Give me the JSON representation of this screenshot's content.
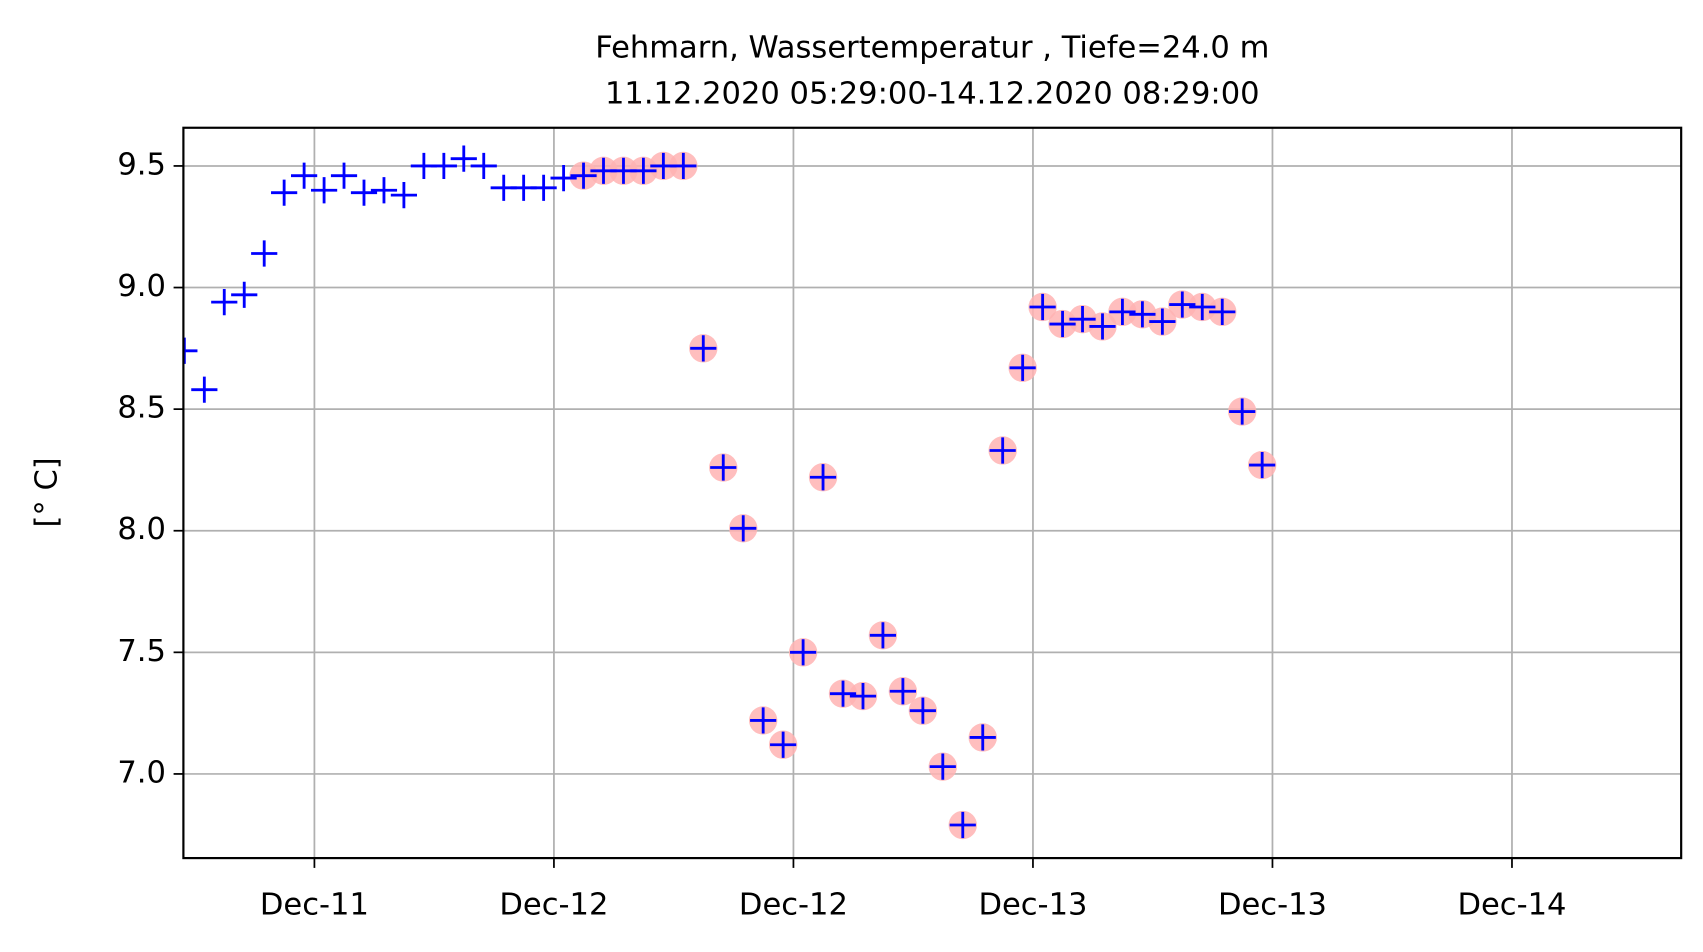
{
  "chart_data": {
    "type": "scatter",
    "title": "Fehmarn, Wassertemperatur , Tiefe=24.0 m",
    "subtitle": "11.12.2020 05:29:00-14.12.2020 08:29:00",
    "y_label": "[° C]",
    "x": [
      11.2285,
      11.2702,
      11.3118,
      11.3535,
      11.3952,
      11.4368,
      11.4785,
      11.5202,
      11.5618,
      11.6035,
      11.6452,
      11.6868,
      11.7285,
      11.7702,
      11.8118,
      11.8535,
      11.8952,
      11.9368,
      11.9785,
      12.0202,
      12.0618,
      12.1035,
      12.1452,
      12.1868,
      12.2285,
      12.2702,
      12.3118,
      12.3535,
      12.3952,
      12.4368,
      12.4785,
      12.5202,
      12.5618,
      12.6035,
      12.6452,
      12.6868,
      12.7285,
      12.7702,
      12.8118,
      12.8535,
      12.8952,
      12.9368,
      12.9785,
      13.0202,
      13.0618,
      13.1035,
      13.1452,
      13.1868,
      13.2285,
      13.2702,
      13.3118,
      13.3535,
      13.3952,
      13.4368,
      13.4785
    ],
    "series": [
      {
        "color": "#ffb3b3",
        "marker": "circle",
        "values": [
          null,
          null,
          null,
          null,
          null,
          null,
          null,
          null,
          null,
          null,
          null,
          null,
          null,
          null,
          null,
          null,
          null,
          null,
          null,
          null,
          9.46,
          9.48,
          9.48,
          9.48,
          9.5,
          9.5,
          8.75,
          8.26,
          8.01,
          7.22,
          7.12,
          7.5,
          8.22,
          7.33,
          7.32,
          7.57,
          7.34,
          7.26,
          7.03,
          6.79,
          7.15,
          8.33,
          8.67,
          8.92,
          8.85,
          8.87,
          8.84,
          8.9,
          8.89,
          8.86,
          8.93,
          8.92,
          8.9,
          8.49,
          8.27
        ]
      },
      {
        "color": "#0000ff",
        "marker": "plus",
        "values": [
          8.74,
          8.58,
          8.94,
          8.97,
          9.14,
          9.39,
          9.46,
          9.4,
          9.46,
          9.39,
          9.4,
          9.38,
          9.5,
          9.5,
          9.53,
          9.5,
          9.41,
          9.41,
          9.41,
          9.45,
          9.46,
          9.48,
          9.48,
          9.48,
          9.5,
          9.5,
          8.75,
          8.26,
          8.01,
          7.22,
          7.12,
          7.5,
          8.22,
          7.33,
          7.32,
          7.57,
          7.34,
          7.26,
          7.03,
          6.79,
          7.15,
          8.33,
          8.67,
          8.92,
          8.85,
          8.87,
          8.84,
          8.9,
          8.89,
          8.86,
          8.93,
          8.92,
          8.9,
          8.49,
          8.27
        ]
      }
    ],
    "xlim": [
      11.2265,
      14.3532
    ],
    "xticks": [
      {
        "value": 11.5,
        "label": "Dec-11"
      },
      {
        "value": 12.0,
        "label": "Dec-12"
      },
      {
        "value": 12.5,
        "label": "Dec-12"
      },
      {
        "value": 13.0,
        "label": "Dec-13"
      },
      {
        "value": 13.5,
        "label": "Dec-13"
      },
      {
        "value": 14.0,
        "label": "Dec-14"
      }
    ],
    "ylim": [
      6.654,
      9.657
    ],
    "yticks": [
      {
        "value": 7.0,
        "label": "7.0"
      },
      {
        "value": 7.5,
        "label": "7.5"
      },
      {
        "value": 8.0,
        "label": "8.0"
      },
      {
        "value": 8.5,
        "label": "8.5"
      },
      {
        "value": 9.0,
        "label": "9.0"
      },
      {
        "value": 9.5,
        "label": "9.5"
      }
    ],
    "grid": true
  }
}
